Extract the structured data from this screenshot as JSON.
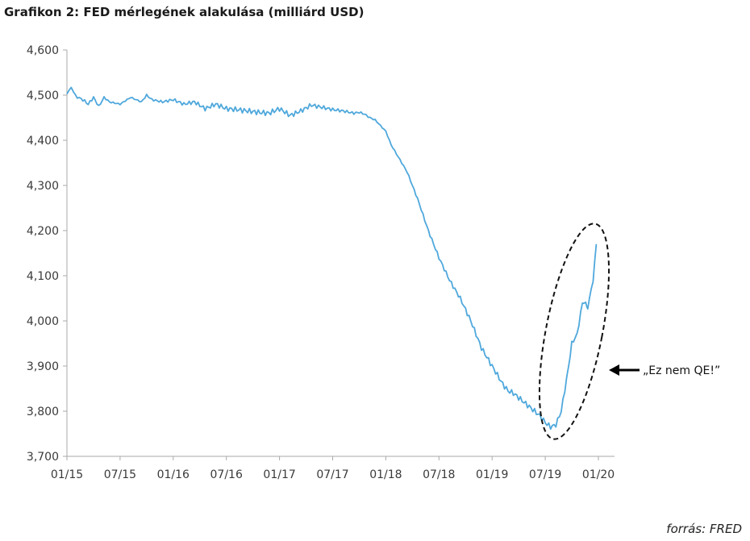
{
  "title": "Grafikon 2: FED mérlegének alakulása (milliárd USD)",
  "source": "forrás: FRED",
  "annotation": "„Ez nem QE!”",
  "colors": {
    "line": "#4fa8dc",
    "axis": "#aaaaaa",
    "text": "#333333"
  },
  "chart_data": {
    "type": "line",
    "title": "Grafikon 2: FED mérlegének alakulása (milliárd USD)",
    "xlabel": "",
    "ylabel": "",
    "ylim": [
      3700,
      4600
    ],
    "yticks": [
      3700,
      3800,
      3900,
      4000,
      4100,
      4200,
      4300,
      4400,
      4500,
      4600
    ],
    "ytick_labels": [
      "3,700",
      "3,800",
      "3,900",
      "4,000",
      "4,100",
      "4,200",
      "4,300",
      "4,400",
      "4,500",
      "4,600"
    ],
    "xlim": [
      2015.0,
      2020.0
    ],
    "xticks": [
      2015.0,
      2015.5,
      2016.0,
      2016.5,
      2017.0,
      2017.5,
      2018.0,
      2018.5,
      2019.0,
      2019.5,
      2020.0
    ],
    "xtick_labels": [
      "01/15",
      "07/15",
      "01/16",
      "07/16",
      "01/17",
      "07/17",
      "01/18",
      "07/18",
      "01/19",
      "07/19",
      "01/20"
    ],
    "grid": false,
    "series": [
      {
        "name": "FED balance sheet",
        "x": [
          2015.0,
          2015.04,
          2015.08,
          2015.15,
          2015.2,
          2015.25,
          2015.3,
          2015.35,
          2015.4,
          2015.5,
          2015.6,
          2015.7,
          2015.75,
          2015.8,
          2015.9,
          2016.0,
          2016.1,
          2016.2,
          2016.3,
          2016.4,
          2016.5,
          2016.6,
          2016.7,
          2016.8,
          2016.9,
          2017.0,
          2017.1,
          2017.2,
          2017.3,
          2017.4,
          2017.5,
          2017.6,
          2017.7,
          2017.75,
          2017.8,
          2017.85,
          2017.9,
          2018.0,
          2018.05,
          2018.1,
          2018.2,
          2018.3,
          2018.4,
          2018.5,
          2018.6,
          2018.7,
          2018.8,
          2018.9,
          2019.0,
          2019.1,
          2019.15,
          2019.2,
          2019.3,
          2019.4,
          2019.45,
          2019.5,
          2019.55,
          2019.6,
          2019.65,
          2019.7,
          2019.72,
          2019.75,
          2019.8,
          2019.85,
          2019.88,
          2019.9,
          2019.95,
          2019.98
        ],
        "values": [
          4500,
          4515,
          4500,
          4490,
          4480,
          4495,
          4475,
          4495,
          4485,
          4480,
          4495,
          4485,
          4500,
          4490,
          4485,
          4490,
          4480,
          4485,
          4470,
          4480,
          4470,
          4468,
          4465,
          4462,
          4460,
          4470,
          4455,
          4465,
          4478,
          4473,
          4468,
          4465,
          4460,
          4462,
          4458,
          4450,
          4445,
          4420,
          4390,
          4370,
          4330,
          4270,
          4200,
          4140,
          4090,
          4050,
          4000,
          3940,
          3900,
          3860,
          3845,
          3840,
          3820,
          3800,
          3790,
          3775,
          3765,
          3770,
          3800,
          3870,
          3900,
          3950,
          3970,
          4040,
          4040,
          4030,
          4090,
          4170
        ]
      }
    ]
  }
}
